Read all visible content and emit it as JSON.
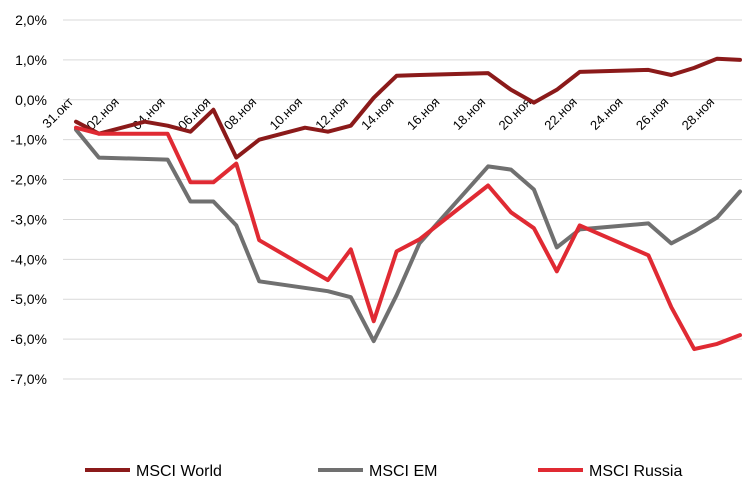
{
  "chart_data": {
    "type": "line",
    "title": "",
    "xlabel": "",
    "ylabel": "",
    "ylim": [
      -7,
      2
    ],
    "y_ticks": [
      "2,0%",
      "1,0%",
      "0,0%",
      "-1,0%",
      "-2,0%",
      "-3,0%",
      "-4,0%",
      "-5,0%",
      "-6,0%",
      "-7,0%"
    ],
    "grid": "horizontal",
    "legend_position": "bottom",
    "x_tick_labels": [
      "31.окт",
      "02.ноя",
      "04.ноя",
      "06.ноя",
      "08.ноя",
      "10.ноя",
      "12.ноя",
      "14.ноя",
      "16.ноя",
      "18.ноя",
      "20.ноя",
      "22.ноя",
      "24.ноя",
      "26.ноя",
      "28.ноя"
    ],
    "x_days": [
      0,
      2,
      4,
      6,
      8,
      10,
      12,
      14,
      16,
      18,
      20,
      22,
      24,
      26,
      28
    ],
    "series": [
      {
        "name": "MSCI World",
        "color": "#8b1a1a",
        "x": [
          0,
          1,
          3,
          4,
          5,
          6,
          7,
          8,
          10,
          11,
          12,
          13,
          14,
          15,
          18,
          19,
          20,
          21,
          22,
          25,
          26,
          27,
          28,
          29
        ],
        "values": [
          -0.55,
          -0.85,
          -0.55,
          -0.65,
          -0.8,
          -0.25,
          -1.45,
          -1.0,
          -0.7,
          -0.8,
          -0.65,
          0.05,
          0.6,
          0.62,
          0.67,
          0.25,
          -0.07,
          0.25,
          0.7,
          0.75,
          0.62,
          0.8,
          1.03,
          1.0
        ]
      },
      {
        "name": "MSCI EM",
        "color": "#707070",
        "x": [
          0,
          1,
          4,
          5,
          6,
          7,
          8,
          11,
          12,
          13,
          14,
          15,
          18,
          19,
          20,
          21,
          22,
          25,
          26,
          27,
          28,
          29
        ],
        "values": [
          -0.75,
          -1.45,
          -1.5,
          -2.55,
          -2.55,
          -3.15,
          -4.55,
          -4.8,
          -4.95,
          -6.05,
          -4.9,
          -3.6,
          -1.67,
          -1.75,
          -2.25,
          -3.7,
          -3.25,
          -3.1,
          -3.6,
          -3.3,
          -2.95,
          -2.3
        ]
      },
      {
        "name": "MSCI Russia",
        "color": "#e02a33",
        "x": [
          0,
          1,
          4,
          5,
          6,
          7,
          8,
          11,
          12,
          13,
          14,
          15,
          18,
          19,
          20,
          21,
          22,
          25,
          26,
          27,
          28,
          29
        ],
        "values": [
          -0.7,
          -0.85,
          -0.85,
          -2.07,
          -2.07,
          -1.6,
          -3.52,
          -4.52,
          -3.75,
          -5.55,
          -3.8,
          -3.5,
          -2.15,
          -2.82,
          -3.22,
          -4.3,
          -3.15,
          -3.9,
          -5.2,
          -6.25,
          -6.12,
          -5.9
        ]
      }
    ]
  }
}
